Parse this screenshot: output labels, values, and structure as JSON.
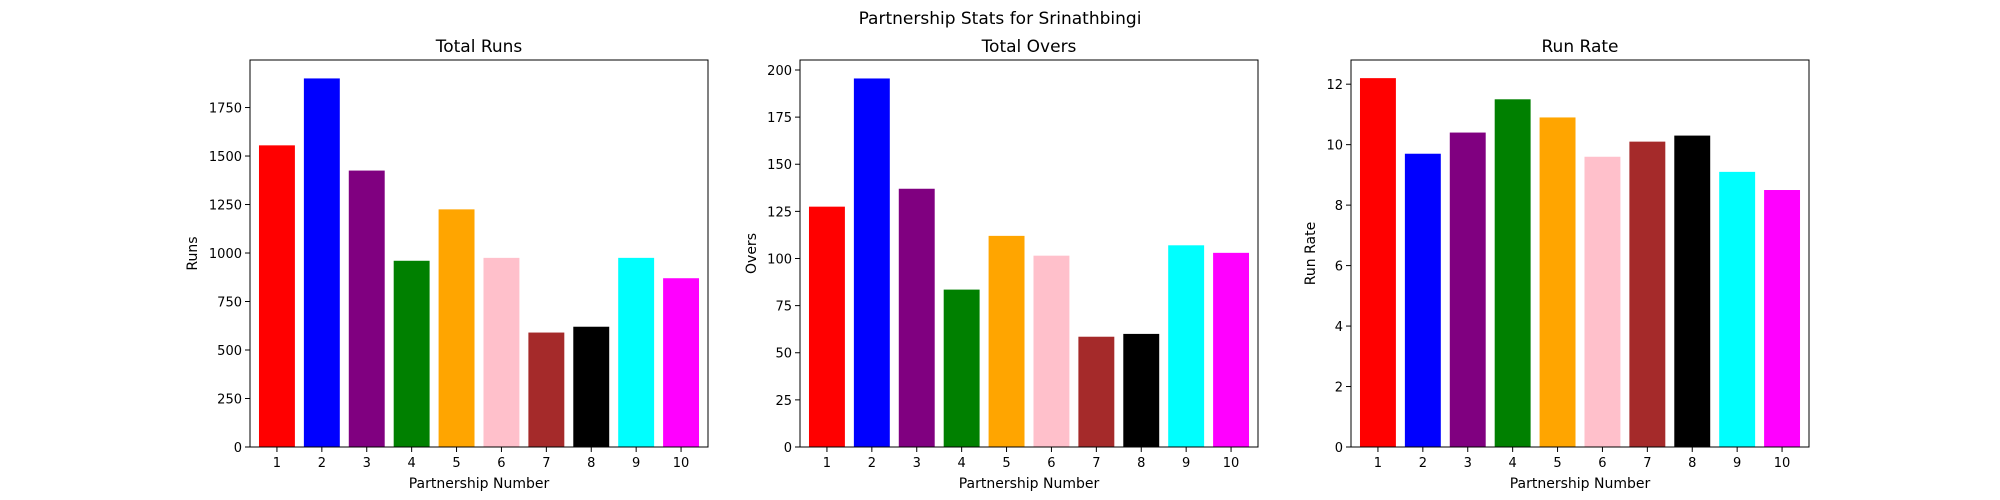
{
  "figure": {
    "suptitle": "Partnership Stats for Srinathbingi"
  },
  "chart_data": [
    {
      "type": "bar",
      "title": "Total Runs",
      "xlabel": "Partnership Number",
      "ylabel": "Runs",
      "categories": [
        "1",
        "2",
        "3",
        "4",
        "5",
        "6",
        "7",
        "8",
        "9",
        "10"
      ],
      "values": [
        1555,
        1900,
        1425,
        960,
        1225,
        975,
        590,
        620,
        975,
        870
      ],
      "colors": [
        "#ff0000",
        "#0000ff",
        "#800080",
        "#008000",
        "#ffa500",
        "#ffc0cb",
        "#a52a2a",
        "#000000",
        "#00ffff",
        "#ff00ff"
      ],
      "ylim": [
        0,
        1995
      ],
      "yticks": [
        0,
        250,
        500,
        750,
        1000,
        1250,
        1500,
        1750
      ]
    },
    {
      "type": "bar",
      "title": "Total Overs",
      "xlabel": "Partnership Number",
      "ylabel": "Overs",
      "categories": [
        "1",
        "2",
        "3",
        "4",
        "5",
        "6",
        "7",
        "8",
        "9",
        "10"
      ],
      "values": [
        127.5,
        195.5,
        137,
        83.5,
        112,
        101.5,
        58.5,
        60,
        107,
        103
      ],
      "colors": [
        "#ff0000",
        "#0000ff",
        "#800080",
        "#008000",
        "#ffa500",
        "#ffc0cb",
        "#a52a2a",
        "#000000",
        "#00ffff",
        "#ff00ff"
      ],
      "ylim": [
        0,
        205.3
      ],
      "yticks": [
        0,
        25,
        50,
        75,
        100,
        125,
        150,
        175,
        200
      ]
    },
    {
      "type": "bar",
      "title": "Run Rate",
      "xlabel": "Partnership Number",
      "ylabel": "Run Rate",
      "categories": [
        "1",
        "2",
        "3",
        "4",
        "5",
        "6",
        "7",
        "8",
        "9",
        "10"
      ],
      "values": [
        12.2,
        9.7,
        10.4,
        11.5,
        10.9,
        9.6,
        10.1,
        10.3,
        9.1,
        8.5
      ],
      "colors": [
        "#ff0000",
        "#0000ff",
        "#800080",
        "#008000",
        "#ffa500",
        "#ffc0cb",
        "#a52a2a",
        "#000000",
        "#00ffff",
        "#ff00ff"
      ],
      "ylim": [
        0,
        12.8
      ],
      "yticks": [
        0,
        2,
        4,
        6,
        8,
        10,
        12
      ]
    }
  ]
}
